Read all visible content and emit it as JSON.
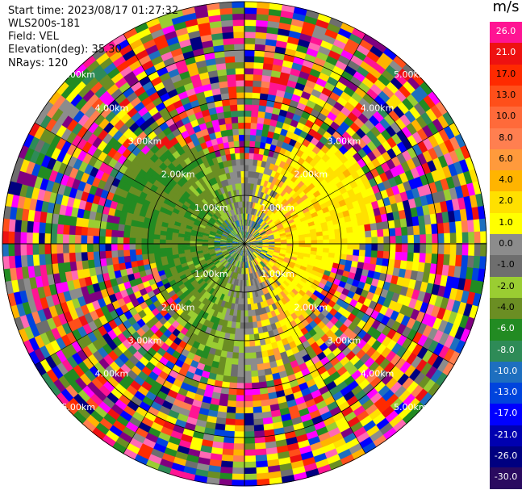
{
  "header": {
    "start_time": "Start time: 2023/08/17 01:27:32",
    "device": "WLS200s-181",
    "field": "Field: VEL",
    "elevation": "Elevation(deg): 35.30",
    "nrays": "NRays: 120"
  },
  "colorbar": {
    "unit": "m/s",
    "labels": [
      "26.0",
      "21.0",
      "17.0",
      "13.0",
      "10.0",
      "8.0",
      "6.0",
      "4.0",
      "2.0",
      "1.0",
      "0.0",
      "-1.0",
      "-2.0",
      "-4.0",
      "-6.0",
      "-8.0",
      "-10.0",
      "-13.0",
      "-17.0",
      "-21.0",
      "-26.0",
      "-30.0"
    ],
    "colors": [
      "#ff1493",
      "#ee1111",
      "#ff2a00",
      "#ff4f1a",
      "#ff6a3a",
      "#ff7f50",
      "#ff9a3c",
      "#ffb400",
      "#ffe000",
      "#ffff00",
      "#8c8c8c",
      "#6e6e6e",
      "#9acd32",
      "#6b8e23",
      "#228b22",
      "#2e8b57",
      "#1e6fbf",
      "#0044dd",
      "#0000ff",
      "#0000b0",
      "#000080",
      "#2a0a60"
    ]
  },
  "chart_data": {
    "type": "heatmap",
    "projection": "polar (PPI)",
    "field": "VEL",
    "units": "m/s",
    "nrays": 120,
    "elevation_deg": 35.3,
    "range_ring_labels": [
      "1.00km",
      "2.00km",
      "3.00km",
      "4.00km",
      "5.00km"
    ],
    "color_range": [
      -30,
      26
    ],
    "near_field_pattern": "green/gray (negative) sector west, yellow (positive) sector east; noisy multicolor beyond ~2.5 km"
  }
}
